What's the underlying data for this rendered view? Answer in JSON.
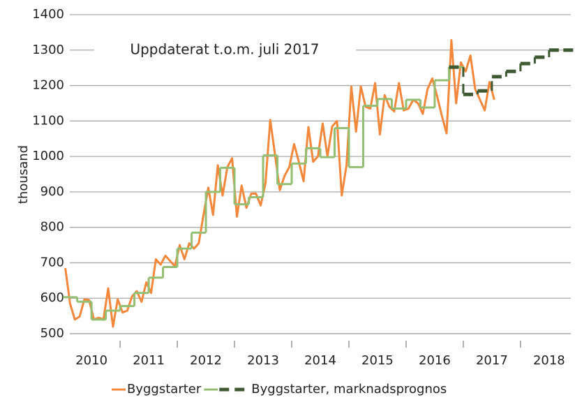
{
  "chart_data": {
    "type": "line",
    "annotation": "Uppdaterat t.o.m. juli 2017",
    "y_label": "thousand",
    "ylim": [
      500,
      1400
    ],
    "yticks": [
      500,
      600,
      700,
      800,
      900,
      1000,
      1100,
      1200,
      1300,
      1400
    ],
    "xlim": [
      2010.12,
      2018.88
    ],
    "xticks": [
      {
        "value": 2010.5,
        "label": "2010"
      },
      {
        "value": 2011.5,
        "label": "2011"
      },
      {
        "value": 2012.5,
        "label": "2012"
      },
      {
        "value": 2013.5,
        "label": "2013"
      },
      {
        "value": 2014.5,
        "label": "2014"
      },
      {
        "value": 2015.5,
        "label": "2015"
      },
      {
        "value": 2016.5,
        "label": "2016"
      },
      {
        "value": 2017.5,
        "label": "2017"
      },
      {
        "value": 2018.5,
        "label": "2018"
      }
    ],
    "grid": true,
    "legend": "bottom",
    "series": [
      {
        "name": "Byggstarter",
        "color": "#f5873a",
        "style": "solid",
        "x": [
          2010.042,
          2010.125,
          2010.208,
          2010.292,
          2010.375,
          2010.458,
          2010.542,
          2010.625,
          2010.708,
          2010.792,
          2010.875,
          2010.958,
          2011.042,
          2011.125,
          2011.208,
          2011.292,
          2011.375,
          2011.458,
          2011.542,
          2011.625,
          2011.708,
          2011.792,
          2011.875,
          2011.958,
          2012.042,
          2012.125,
          2012.208,
          2012.292,
          2012.375,
          2012.458,
          2012.542,
          2012.625,
          2012.708,
          2012.792,
          2012.875,
          2012.958,
          2013.042,
          2013.125,
          2013.208,
          2013.292,
          2013.375,
          2013.458,
          2013.542,
          2013.625,
          2013.708,
          2013.792,
          2013.875,
          2013.958,
          2014.042,
          2014.125,
          2014.208,
          2014.292,
          2014.375,
          2014.458,
          2014.542,
          2014.625,
          2014.708,
          2014.792,
          2014.875,
          2014.958,
          2015.042,
          2015.125,
          2015.208,
          2015.292,
          2015.375,
          2015.458,
          2015.542,
          2015.625,
          2015.708,
          2015.792,
          2015.875,
          2015.958,
          2016.042,
          2016.125,
          2016.208,
          2016.292,
          2016.375,
          2016.458,
          2016.542,
          2016.625,
          2016.708,
          2016.792,
          2016.875,
          2016.958,
          2017.042,
          2017.125,
          2017.208,
          2017.292,
          2017.375,
          2017.458,
          2017.542
        ],
        "values": [
          685,
          585,
          540,
          548,
          597,
          595,
          540,
          545,
          540,
          628,
          520,
          597,
          560,
          565,
          605,
          620,
          590,
          645,
          615,
          710,
          695,
          720,
          705,
          690,
          750,
          710,
          755,
          740,
          755,
          835,
          912,
          835,
          975,
          890,
          970,
          995,
          830,
          918,
          855,
          895,
          895,
          862,
          925,
          1103,
          1005,
          905,
          945,
          970,
          1035,
          985,
          930,
          1083,
          985,
          1000,
          1093,
          1000,
          1085,
          1100,
          890,
          975,
          1197,
          1070,
          1198,
          1140,
          1135,
          1207,
          1062,
          1173,
          1140,
          1127,
          1207,
          1130,
          1135,
          1160,
          1150,
          1120,
          1190,
          1220,
          1170,
          1115,
          1065,
          1328,
          1150,
          1265,
          1240,
          1285,
          1190,
          1160,
          1130,
          1210,
          1160
        ]
      },
      {
        "color": "#93bf73",
        "style": "step",
        "x": [
          2010,
          2010.25,
          2010.5,
          2010.75,
          2011,
          2011.25,
          2011.5,
          2011.75,
          2012,
          2012.25,
          2012.5,
          2012.75,
          2013,
          2013.25,
          2013.5,
          2013.75,
          2014,
          2014.25,
          2014.5,
          2014.75,
          2015,
          2015.25,
          2015.5,
          2015.75,
          2016,
          2016.25,
          2016.5,
          2016.75
        ],
        "values": [
          603,
          590,
          540,
          565,
          578,
          615,
          658,
          688,
          740,
          785,
          900,
          968,
          865,
          885,
          1003,
          922,
          980,
          1023,
          998,
          1080,
          970,
          1143,
          1162,
          1135,
          1160,
          1138,
          1215,
          1252
        ]
      },
      {
        "name": "Byggstarter, marknadsprognos",
        "color": "#3d5a32",
        "style": "dashed-step",
        "x": [
          2016.75,
          2017,
          2017.25,
          2017.5,
          2017.75,
          2018,
          2018.25,
          2018.5,
          2018.75
        ],
        "values": [
          1252,
          1175,
          1185,
          1225,
          1240,
          1262,
          1280,
          1300,
          1300
        ]
      }
    ]
  }
}
